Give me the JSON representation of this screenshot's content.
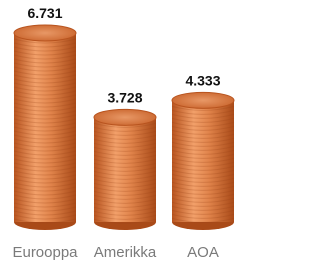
{
  "chart_data": {
    "type": "cylinder",
    "categories": [
      "Eurooppa",
      "Amerikka",
      "AOA"
    ],
    "values": [
      6.731,
      3.728,
      4.333
    ],
    "color": "#d9773a"
  }
}
